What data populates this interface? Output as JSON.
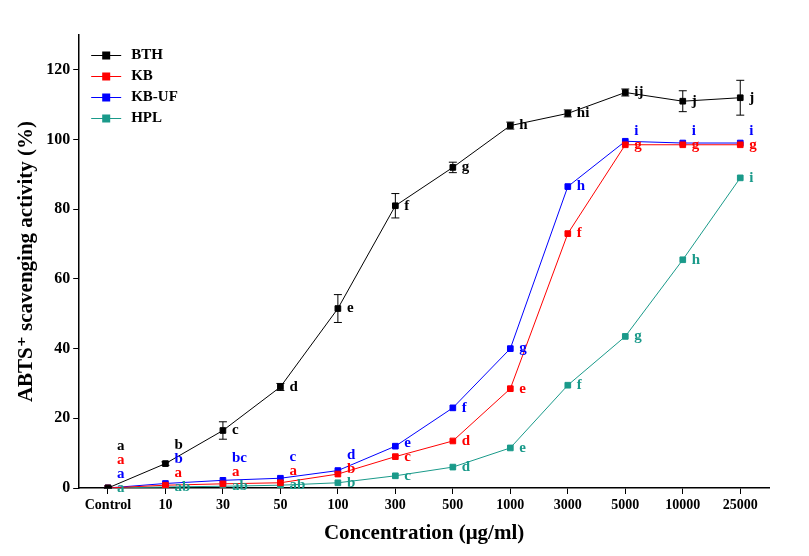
{
  "chart_data": {
    "type": "line",
    "x_label": "Concentration (μg/ml)",
    "y_label": "ABTS⁺ scavenging activity (%)",
    "categories": [
      "Control",
      "10",
      "30",
      "50",
      "100",
      "300",
      "500",
      "1000",
      "3000",
      "5000",
      "10000",
      "25000"
    ],
    "ylim": [
      0,
      130
    ],
    "yticks": [
      0,
      20,
      40,
      60,
      80,
      100,
      120
    ],
    "grid": false,
    "legend": "top-left",
    "marker": "square",
    "line_style": "solid",
    "series": [
      {
        "name": "BTH",
        "color": "#000000",
        "values": [
          0,
          7,
          16.5,
          29,
          51.5,
          81,
          92,
          104,
          107.5,
          113.5,
          111,
          112
        ],
        "errors": [
          0,
          0.5,
          2.5,
          1,
          4,
          3.5,
          1.5,
          1,
          1,
          1,
          3,
          5
        ],
        "letters": [
          "a",
          "b",
          "c",
          "d",
          "e",
          "f",
          "g",
          "h",
          "hi",
          "ij",
          "j",
          "j"
        ]
      },
      {
        "name": "KB",
        "color": "#ff0000",
        "values": [
          0,
          0.8,
          1.2,
          1.5,
          4,
          9,
          13.5,
          28.5,
          73,
          98.5,
          98.5,
          98.5
        ],
        "letters": [
          "a",
          "a",
          "a",
          "a",
          "b",
          "c",
          "d",
          "e",
          "f",
          "g",
          "g",
          "g"
        ]
      },
      {
        "name": "KB-UF",
        "color": "#0000ff",
        "values": [
          0,
          1.3,
          2.2,
          2.8,
          5,
          12,
          23,
          40,
          86.5,
          99.5,
          99,
          99
        ],
        "letters": [
          "a",
          "b",
          "bc",
          "c",
          "d",
          "e",
          "f",
          "g",
          "h",
          "i",
          "i",
          "i"
        ]
      },
      {
        "name": "HPL",
        "color": "#1a9a8a",
        "values": [
          0,
          0.3,
          0.5,
          0.8,
          1.5,
          3.5,
          6,
          11.5,
          29.5,
          43.5,
          65.5,
          89
        ],
        "letters": [
          "a",
          "ab",
          "ab",
          "ab",
          "b",
          "c",
          "d",
          "e",
          "f",
          "g",
          "h",
          "i"
        ]
      }
    ]
  }
}
